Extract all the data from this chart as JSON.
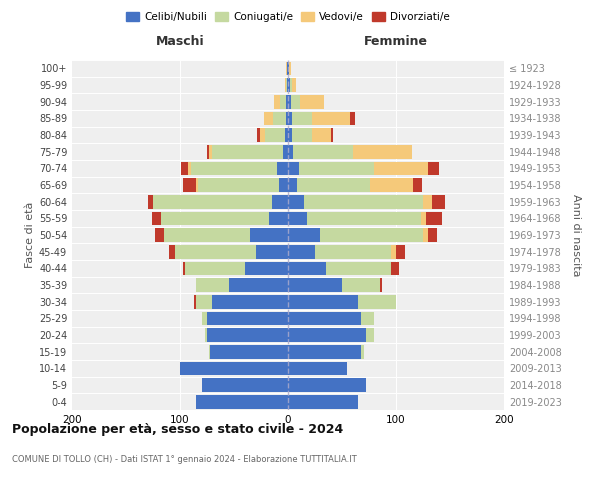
{
  "age_groups": [
    "0-4",
    "5-9",
    "10-14",
    "15-19",
    "20-24",
    "25-29",
    "30-34",
    "35-39",
    "40-44",
    "45-49",
    "50-54",
    "55-59",
    "60-64",
    "65-69",
    "70-74",
    "75-79",
    "80-84",
    "85-89",
    "90-94",
    "95-99",
    "100+"
  ],
  "birth_years": [
    "2019-2023",
    "2014-2018",
    "2009-2013",
    "2004-2008",
    "1999-2003",
    "1994-1998",
    "1989-1993",
    "1984-1988",
    "1979-1983",
    "1974-1978",
    "1969-1973",
    "1964-1968",
    "1959-1963",
    "1954-1958",
    "1949-1953",
    "1944-1948",
    "1939-1943",
    "1934-1938",
    "1929-1933",
    "1924-1928",
    "≤ 1923"
  ],
  "colors": {
    "celibi": "#4472c4",
    "coniugati": "#c5d9a0",
    "vedovi": "#f5c97a",
    "divorziati": "#c0392b"
  },
  "male": {
    "celibi": [
      85,
      80,
      100,
      72,
      75,
      75,
      70,
      55,
      40,
      30,
      35,
      18,
      15,
      8,
      10,
      5,
      3,
      2,
      2,
      1,
      1
    ],
    "coniugati": [
      0,
      0,
      0,
      1,
      2,
      5,
      15,
      30,
      55,
      75,
      80,
      100,
      110,
      75,
      80,
      65,
      18,
      12,
      5,
      1,
      0
    ],
    "vedovi": [
      0,
      0,
      0,
      0,
      0,
      0,
      0,
      0,
      0,
      0,
      0,
      0,
      0,
      2,
      3,
      3,
      5,
      8,
      6,
      1,
      1
    ],
    "divorziati": [
      0,
      0,
      0,
      0,
      0,
      0,
      2,
      0,
      2,
      5,
      8,
      8,
      5,
      12,
      6,
      2,
      3,
      0,
      0,
      0,
      0
    ]
  },
  "female": {
    "nubili": [
      65,
      72,
      55,
      68,
      72,
      68,
      65,
      50,
      35,
      25,
      30,
      18,
      15,
      8,
      10,
      5,
      4,
      4,
      3,
      2,
      1
    ],
    "coniugati": [
      0,
      0,
      0,
      2,
      8,
      12,
      35,
      35,
      60,
      70,
      95,
      105,
      110,
      68,
      70,
      55,
      18,
      18,
      8,
      2,
      0
    ],
    "vedovi": [
      0,
      0,
      0,
      0,
      0,
      0,
      0,
      0,
      0,
      5,
      5,
      5,
      8,
      40,
      50,
      55,
      18,
      35,
      22,
      3,
      2
    ],
    "divorziati": [
      0,
      0,
      0,
      0,
      0,
      0,
      0,
      2,
      8,
      8,
      8,
      15,
      12,
      8,
      10,
      0,
      2,
      5,
      0,
      0,
      0
    ]
  },
  "xlim": 200,
  "title": "Popolazione per età, sesso e stato civile - 2024",
  "subtitle": "COMUNE DI TOLLO (CH) - Dati ISTAT 1° gennaio 2024 - Elaborazione TUTTITALIA.IT",
  "ylabel_left": "Fasce di età",
  "ylabel_right": "Anni di nascita",
  "xlabel_left": "Maschi",
  "xlabel_right": "Femmine",
  "legend_labels": [
    "Celibi/Nubili",
    "Coniugati/e",
    "Vedovi/e",
    "Divorziati/e"
  ],
  "bg_color": "#ffffff",
  "plot_bg_color": "#efefef"
}
